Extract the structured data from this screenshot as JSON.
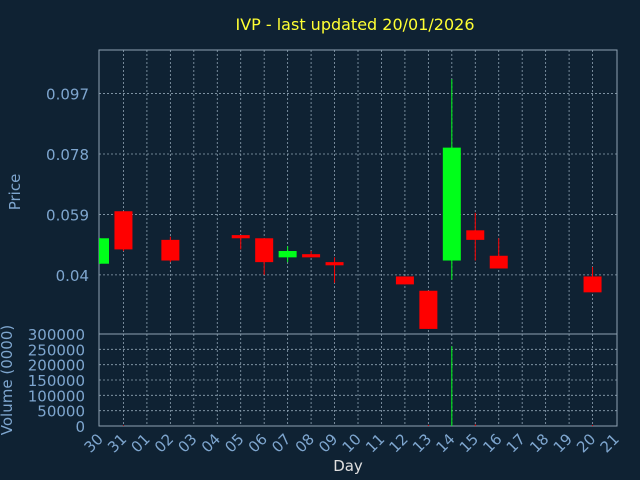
{
  "chart_data": {
    "type": "candlestick",
    "title": "IVP - last updated 20/01/2026",
    "xlabel": "Day",
    "ylabel_price": "Price",
    "ylabel_volume": "Volume (0000)",
    "price_ticks": [
      "0.04",
      "0.059",
      "0.078",
      "0.097"
    ],
    "price_ylim": [
      0.0214,
      0.1107
    ],
    "volume_ticks": [
      "0",
      "50000",
      "100000",
      "150000",
      "200000",
      "250000",
      "300000"
    ],
    "volume_ylim": [
      0,
      300000
    ],
    "x_ticks": [
      "30",
      "31",
      "01",
      "02",
      "03",
      "04",
      "05",
      "06",
      "07",
      "08",
      "09",
      "10",
      "11",
      "12",
      "13",
      "14",
      "15",
      "16",
      "17",
      "18",
      "19",
      "20",
      "21"
    ],
    "grid": true,
    "colors": {
      "background": "#0f2233",
      "up": "#00ff1a",
      "down": "#ff0000",
      "title": "#ffff33",
      "grid": "#8fa3b3",
      "axis_text": "#7ea6cf"
    },
    "candles": [
      {
        "day": "30",
        "open": 0.0435,
        "close": 0.0515,
        "high": 0.0515,
        "low": 0.0435,
        "volume": 0
      },
      {
        "day": "31",
        "open": 0.06,
        "close": 0.048,
        "high": 0.06,
        "low": 0.0475,
        "volume": 2000
      },
      {
        "day": "02",
        "open": 0.051,
        "close": 0.0445,
        "high": 0.052,
        "low": 0.044,
        "volume": 0
      },
      {
        "day": "05",
        "open": 0.0525,
        "close": 0.0515,
        "high": 0.0525,
        "low": 0.048,
        "volume": 0
      },
      {
        "day": "06",
        "open": 0.0515,
        "close": 0.044,
        "high": 0.0515,
        "low": 0.04,
        "volume": 0
      },
      {
        "day": "07",
        "open": 0.0455,
        "close": 0.0475,
        "high": 0.049,
        "low": 0.044,
        "volume": 0
      },
      {
        "day": "08",
        "open": 0.0465,
        "close": 0.0455,
        "high": 0.0475,
        "low": 0.0455,
        "volume": 0
      },
      {
        "day": "09",
        "open": 0.044,
        "close": 0.043,
        "high": 0.0455,
        "low": 0.0375,
        "volume": 0
      },
      {
        "day": "12",
        "open": 0.0395,
        "close": 0.037,
        "high": 0.0395,
        "low": 0.037,
        "volume": 0
      },
      {
        "day": "13",
        "open": 0.035,
        "close": 0.023,
        "high": 0.035,
        "low": 0.023,
        "volume": 3000
      },
      {
        "day": "14",
        "open": 0.0445,
        "close": 0.08,
        "high": 0.1015,
        "low": 0.0385,
        "volume": 260000
      },
      {
        "day": "15",
        "open": 0.054,
        "close": 0.051,
        "high": 0.0595,
        "low": 0.0445,
        "volume": 5000
      },
      {
        "day": "16",
        "open": 0.046,
        "close": 0.042,
        "high": 0.0515,
        "low": 0.042,
        "volume": 0
      },
      {
        "day": "20",
        "open": 0.0395,
        "close": 0.0345,
        "high": 0.0425,
        "low": 0.0345,
        "volume": 3000
      }
    ]
  }
}
